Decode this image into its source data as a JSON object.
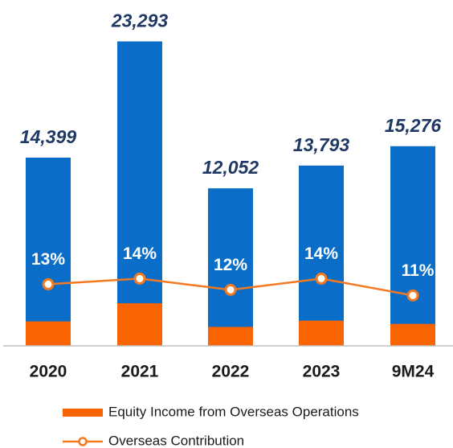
{
  "chart_data": {
    "type": "bar",
    "categories": [
      "2020",
      "2021",
      "2022",
      "2023",
      "9M24"
    ],
    "ylim": [
      0,
      24000
    ],
    "y2lim": [
      2,
      58
    ],
    "legend": "bottom",
    "series": [
      {
        "type": "bar",
        "overlay": true,
        "color": "#0a6ec8",
        "values": [
          14399,
          23293,
          12052,
          13793,
          15276
        ],
        "value_labels": [
          "14,399",
          "23,293",
          "12,052",
          "13,793",
          "15,276"
        ]
      },
      {
        "name": "Equity Income from Overseas Operations",
        "type": "bar",
        "overlay": true,
        "color": "#fa6400",
        "values": [
          1870,
          3260,
          1450,
          1930,
          1680
        ]
      },
      {
        "name": "Overseas Contribution",
        "type": "line",
        "axis": "y2",
        "color": "#f47920",
        "values": [
          13,
          14,
          12,
          14,
          11
        ],
        "value_labels": [
          "13%",
          "14%",
          "12%",
          "14%",
          "11%"
        ]
      }
    ]
  }
}
